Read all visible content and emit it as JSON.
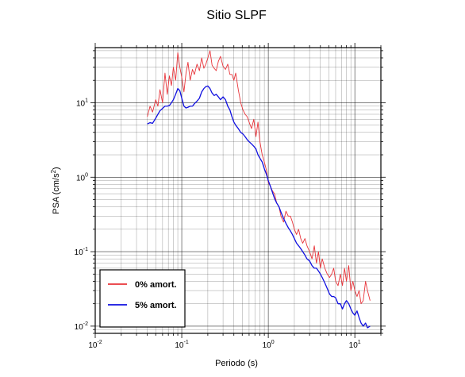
{
  "chart_data": {
    "type": "line",
    "title": "Sitio SLPF",
    "xlabel": "Periodo (s)",
    "ylabel_main": "PSA (cm/s",
    "ylabel_sup": "2",
    "ylabel_close": ")",
    "xscale": "log",
    "yscale": "log",
    "xlim": [
      0.01,
      20
    ],
    "ylim": [
      0.008,
      55
    ],
    "grid": true,
    "legend_position": "bottom-left",
    "x_ticks": [
      {
        "value": 0.01,
        "base": "10",
        "exp": "-2"
      },
      {
        "value": 0.1,
        "base": "10",
        "exp": "-1"
      },
      {
        "value": 1,
        "base": "10",
        "exp": "0"
      },
      {
        "value": 10,
        "base": "10",
        "exp": "1"
      }
    ],
    "y_ticks": [
      {
        "value": 0.01,
        "base": "10",
        "exp": "-2"
      },
      {
        "value": 0.1,
        "base": "10",
        "exp": "-1"
      },
      {
        "value": 1,
        "base": "10",
        "exp": "0"
      },
      {
        "value": 10,
        "base": "10",
        "exp": "1"
      }
    ],
    "series": [
      {
        "name": "0% amort.",
        "color": "#e8343a",
        "points": [
          [
            0.04,
            6.5
          ],
          [
            0.043,
            9.0
          ],
          [
            0.046,
            7.5
          ],
          [
            0.05,
            11.0
          ],
          [
            0.053,
            9.0
          ],
          [
            0.056,
            15.0
          ],
          [
            0.06,
            10.0
          ],
          [
            0.064,
            25.0
          ],
          [
            0.068,
            13.0
          ],
          [
            0.072,
            23.0
          ],
          [
            0.076,
            17.0
          ],
          [
            0.08,
            30.0
          ],
          [
            0.085,
            20.0
          ],
          [
            0.09,
            47.0
          ],
          [
            0.095,
            30.0
          ],
          [
            0.1,
            22.0
          ],
          [
            0.106,
            14.0
          ],
          [
            0.112,
            25.0
          ],
          [
            0.118,
            35.0
          ],
          [
            0.125,
            20.0
          ],
          [
            0.133,
            28.0
          ],
          [
            0.14,
            24.0
          ],
          [
            0.15,
            33.0
          ],
          [
            0.16,
            27.0
          ],
          [
            0.17,
            40.0
          ],
          [
            0.18,
            29.0
          ],
          [
            0.19,
            33.0
          ],
          [
            0.2,
            40.0
          ],
          [
            0.212,
            50.0
          ],
          [
            0.224,
            32.0
          ],
          [
            0.237,
            29.0
          ],
          [
            0.25,
            27.0
          ],
          [
            0.265,
            36.0
          ],
          [
            0.28,
            42.0
          ],
          [
            0.3,
            31.0
          ],
          [
            0.32,
            28.0
          ],
          [
            0.34,
            33.0
          ],
          [
            0.36,
            24.0
          ],
          [
            0.38,
            24.0
          ],
          [
            0.4,
            20.0
          ],
          [
            0.42,
            25.0
          ],
          [
            0.45,
            15.0
          ],
          [
            0.48,
            10.0
          ],
          [
            0.51,
            8.0
          ],
          [
            0.54,
            7.0
          ],
          [
            0.57,
            6.5
          ],
          [
            0.6,
            5.5
          ],
          [
            0.64,
            4.5
          ],
          [
            0.68,
            6.0
          ],
          [
            0.72,
            3.5
          ],
          [
            0.76,
            5.5
          ],
          [
            0.8,
            3.0
          ],
          [
            0.85,
            2.0
          ],
          [
            0.9,
            1.6
          ],
          [
            0.95,
            1.25
          ],
          [
            1.0,
            0.85
          ],
          [
            1.06,
            0.75
          ],
          [
            1.12,
            0.65
          ],
          [
            1.18,
            0.6
          ],
          [
            1.25,
            0.45
          ],
          [
            1.33,
            0.4
          ],
          [
            1.4,
            0.3
          ],
          [
            1.5,
            0.25
          ],
          [
            1.6,
            0.35
          ],
          [
            1.7,
            0.3
          ],
          [
            1.8,
            0.3
          ],
          [
            1.9,
            0.25
          ],
          [
            2.0,
            0.2
          ],
          [
            2.12,
            0.17
          ],
          [
            2.24,
            0.2
          ],
          [
            2.37,
            0.15
          ],
          [
            2.5,
            0.13
          ],
          [
            2.65,
            0.15
          ],
          [
            2.8,
            0.12
          ],
          [
            3.0,
            0.1
          ],
          [
            3.2,
            0.08
          ],
          [
            3.4,
            0.12
          ],
          [
            3.6,
            0.07
          ],
          [
            3.8,
            0.1
          ],
          [
            4.0,
            0.06
          ],
          [
            4.2,
            0.08
          ],
          [
            4.5,
            0.06
          ],
          [
            4.8,
            0.05
          ],
          [
            5.1,
            0.045
          ],
          [
            5.4,
            0.05
          ],
          [
            5.7,
            0.06
          ],
          [
            6.0,
            0.04
          ],
          [
            6.4,
            0.035
          ],
          [
            6.8,
            0.05
          ],
          [
            7.2,
            0.035
          ],
          [
            7.6,
            0.06
          ],
          [
            8.0,
            0.04
          ],
          [
            8.5,
            0.065
          ],
          [
            9.0,
            0.03
          ],
          [
            9.5,
            0.04
          ],
          [
            10.0,
            0.03
          ],
          [
            10.6,
            0.025
          ],
          [
            11.2,
            0.03
          ],
          [
            11.8,
            0.02
          ],
          [
            12.5,
            0.022
          ],
          [
            13.3,
            0.04
          ],
          [
            14.0,
            0.03
          ],
          [
            15.0,
            0.022
          ]
        ]
      },
      {
        "name": "5% amort.",
        "color": "#1010e0",
        "points": [
          [
            0.04,
            5.2
          ],
          [
            0.043,
            5.4
          ],
          [
            0.046,
            5.3
          ],
          [
            0.05,
            6.2
          ],
          [
            0.053,
            7.0
          ],
          [
            0.056,
            7.8
          ],
          [
            0.06,
            8.4
          ],
          [
            0.064,
            9.0
          ],
          [
            0.068,
            9.0
          ],
          [
            0.072,
            9.2
          ],
          [
            0.076,
            10.0
          ],
          [
            0.08,
            11.0
          ],
          [
            0.085,
            13.0
          ],
          [
            0.09,
            15.5
          ],
          [
            0.095,
            14.5
          ],
          [
            0.1,
            11.5
          ],
          [
            0.106,
            9.0
          ],
          [
            0.112,
            8.5
          ],
          [
            0.118,
            8.7
          ],
          [
            0.125,
            9.0
          ],
          [
            0.133,
            9.0
          ],
          [
            0.14,
            9.7
          ],
          [
            0.15,
            10.5
          ],
          [
            0.16,
            11.5
          ],
          [
            0.17,
            14.0
          ],
          [
            0.18,
            15.5
          ],
          [
            0.19,
            16.5
          ],
          [
            0.2,
            16.8
          ],
          [
            0.212,
            15.5
          ],
          [
            0.224,
            13.5
          ],
          [
            0.237,
            12.5
          ],
          [
            0.25,
            13.0
          ],
          [
            0.265,
            12.0
          ],
          [
            0.28,
            11.0
          ],
          [
            0.3,
            12.0
          ],
          [
            0.32,
            11.0
          ],
          [
            0.34,
            9.0
          ],
          [
            0.36,
            8.0
          ],
          [
            0.38,
            6.5
          ],
          [
            0.4,
            5.5
          ],
          [
            0.42,
            5.0
          ],
          [
            0.45,
            4.5
          ],
          [
            0.48,
            4.0
          ],
          [
            0.51,
            3.8
          ],
          [
            0.54,
            3.5
          ],
          [
            0.57,
            3.2
          ],
          [
            0.6,
            3.0
          ],
          [
            0.64,
            2.8
          ],
          [
            0.68,
            2.6
          ],
          [
            0.72,
            2.4
          ],
          [
            0.76,
            2.0
          ],
          [
            0.8,
            1.8
          ],
          [
            0.85,
            1.6
          ],
          [
            0.9,
            1.3
          ],
          [
            0.95,
            1.1
          ],
          [
            1.0,
            0.9
          ],
          [
            1.06,
            0.75
          ],
          [
            1.12,
            0.62
          ],
          [
            1.18,
            0.52
          ],
          [
            1.25,
            0.45
          ],
          [
            1.33,
            0.4
          ],
          [
            1.4,
            0.34
          ],
          [
            1.5,
            0.28
          ],
          [
            1.6,
            0.24
          ],
          [
            1.7,
            0.21
          ],
          [
            1.8,
            0.19
          ],
          [
            1.9,
            0.17
          ],
          [
            2.0,
            0.15
          ],
          [
            2.12,
            0.13
          ],
          [
            2.24,
            0.12
          ],
          [
            2.37,
            0.11
          ],
          [
            2.5,
            0.1
          ],
          [
            2.65,
            0.09
          ],
          [
            2.8,
            0.08
          ],
          [
            3.0,
            0.075
          ],
          [
            3.2,
            0.065
          ],
          [
            3.4,
            0.06
          ],
          [
            3.6,
            0.06
          ],
          [
            3.8,
            0.055
          ],
          [
            4.0,
            0.05
          ],
          [
            4.2,
            0.045
          ],
          [
            4.5,
            0.038
          ],
          [
            4.8,
            0.032
          ],
          [
            5.1,
            0.027
          ],
          [
            5.4,
            0.025
          ],
          [
            5.7,
            0.025
          ],
          [
            6.0,
            0.024
          ],
          [
            6.4,
            0.02
          ],
          [
            6.8,
            0.02
          ],
          [
            7.2,
            0.017
          ],
          [
            7.6,
            0.02
          ],
          [
            8.0,
            0.022
          ],
          [
            8.5,
            0.02
          ],
          [
            9.0,
            0.017
          ],
          [
            9.5,
            0.015
          ],
          [
            10.0,
            0.014
          ],
          [
            10.6,
            0.016
          ],
          [
            11.2,
            0.013
          ],
          [
            11.8,
            0.011
          ],
          [
            12.5,
            0.01
          ],
          [
            13.3,
            0.011
          ],
          [
            14.0,
            0.0095
          ],
          [
            15.0,
            0.01
          ]
        ]
      }
    ]
  }
}
